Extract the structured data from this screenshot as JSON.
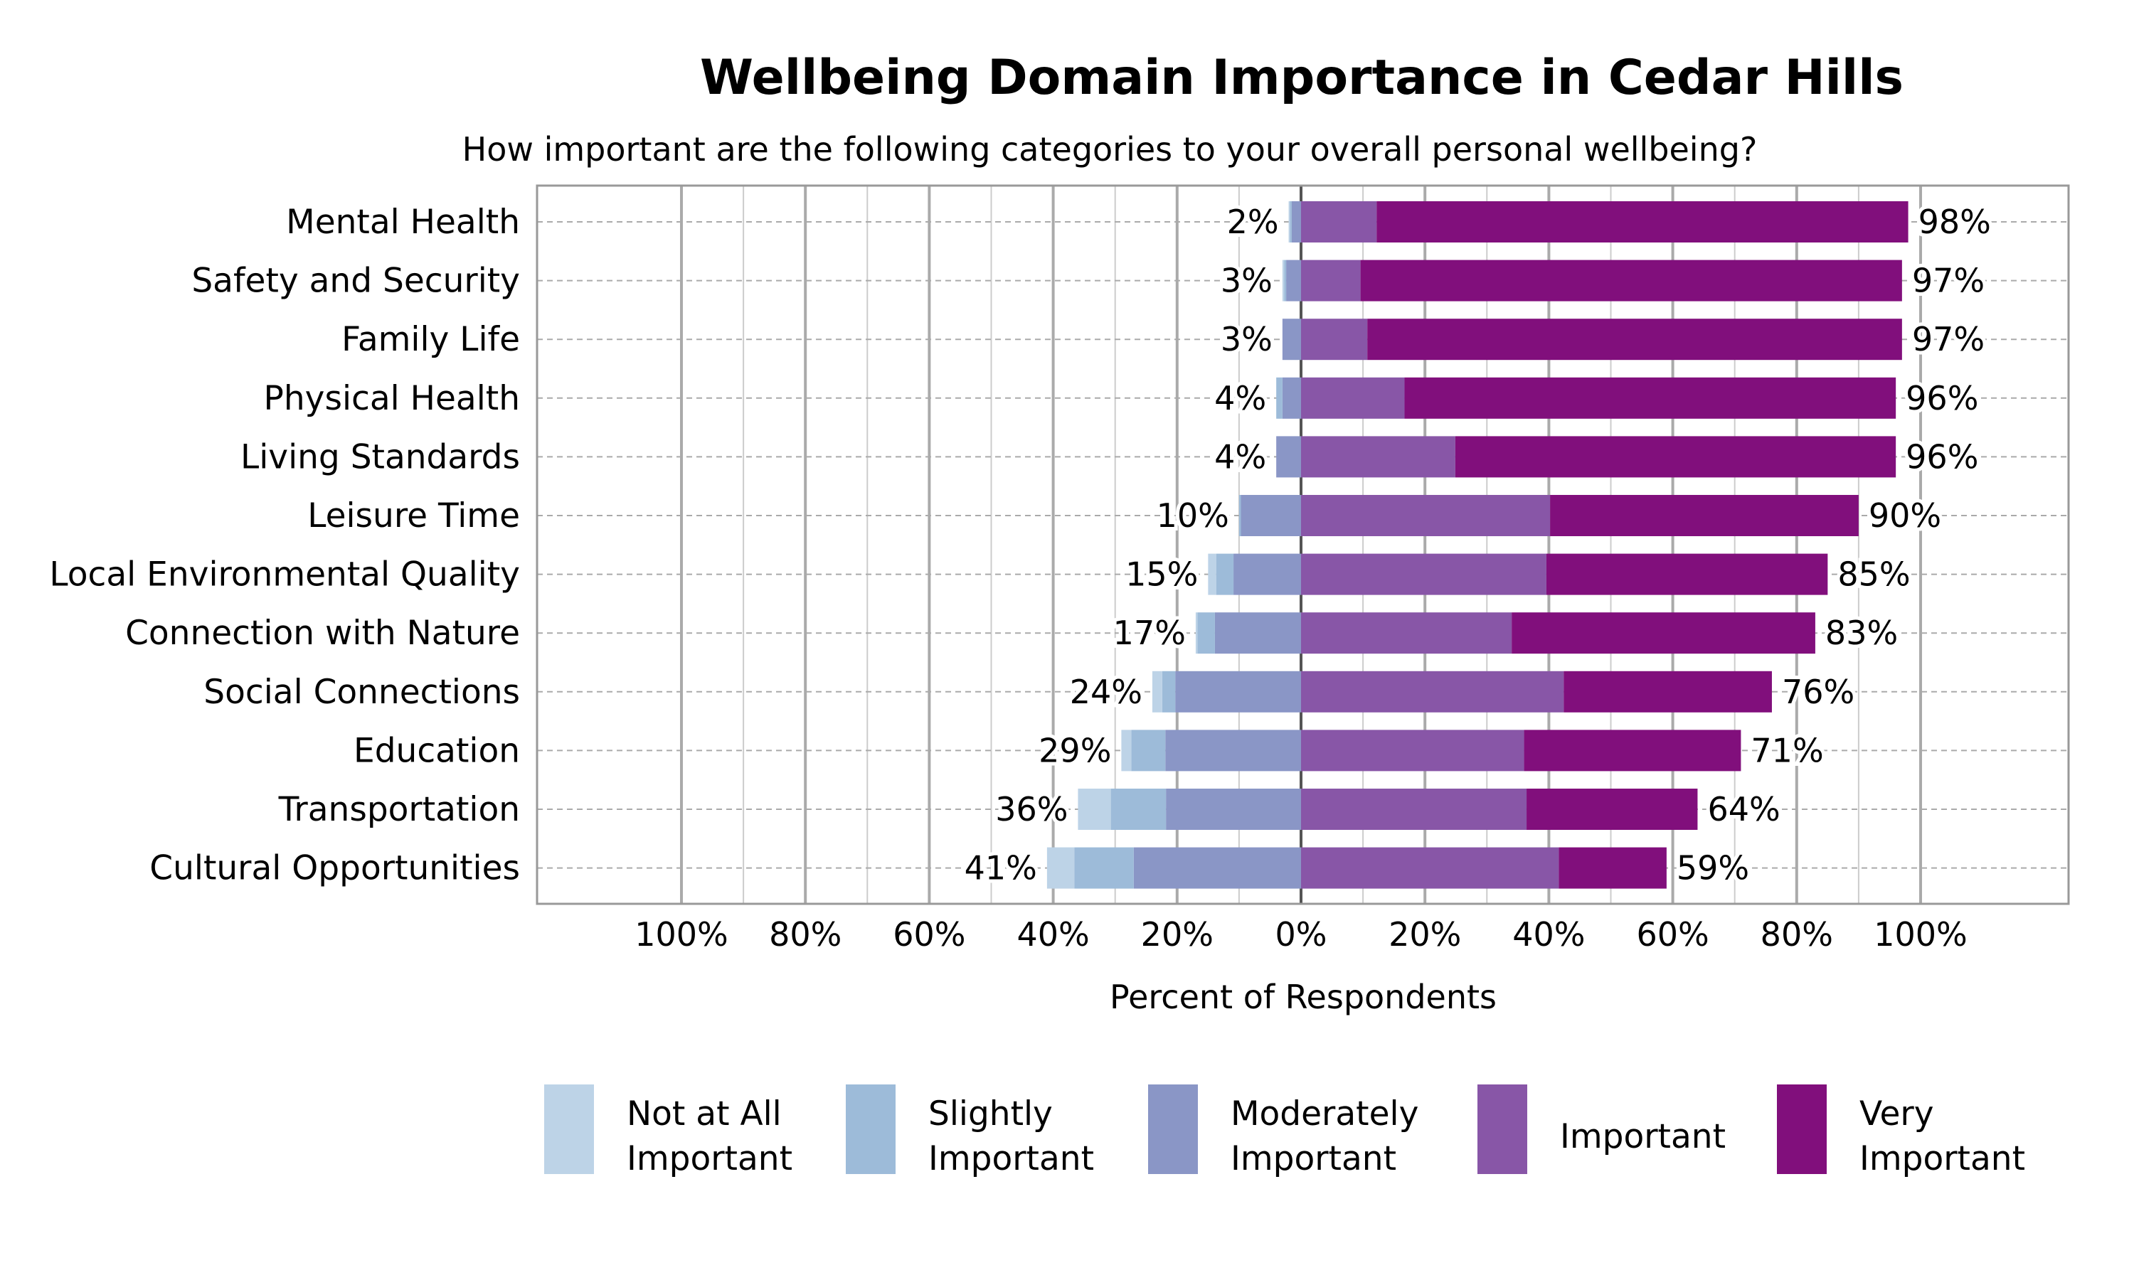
{
  "chart_data": {
    "type": "bar",
    "subtype": "diverging-stacked-horizontal",
    "title": "Wellbeing Domain Importance in Cedar Hills",
    "subtitle": "How important are the following categories to your overall personal wellbeing?",
    "xlabel": "Percent of Respondents",
    "ylabel": "",
    "xlim": [
      -100,
      100
    ],
    "x_ticks": [
      "100%",
      "80%",
      "60%",
      "40%",
      "20%",
      "0%",
      "20%",
      "40%",
      "60%",
      "80%",
      "100%"
    ],
    "grid": true,
    "legend_position": "bottom",
    "categories": [
      "Mental Health",
      "Safety and Security",
      "Family Life",
      "Physical Health",
      "Living Standards",
      "Leisure Time",
      "Local Environmental Quality",
      "Connection with Nature",
      "Social Connections",
      "Education",
      "Transportation",
      "Cultural Opportunities"
    ],
    "series": [
      {
        "name": "Not at All Important",
        "side": "negative",
        "color": "#bdd3e7",
        "values": [
          0.2,
          0.3,
          0,
          0,
          0,
          0,
          1.3,
          0.3,
          1.6,
          1.6,
          5.3,
          4.4
        ]
      },
      {
        "name": "Slightly Important",
        "side": "negative",
        "color": "#9dbbd9",
        "values": [
          0.3,
          0.3,
          0,
          1.0,
          0,
          0.3,
          2.8,
          2.8,
          2.1,
          5.5,
          8.9,
          9.6
        ]
      },
      {
        "name": "Moderately Important",
        "side": "negative",
        "color": "#8a96c6",
        "values": [
          1.5,
          2.4,
          3,
          3,
          4,
          9.7,
          10.9,
          13.9,
          20.3,
          21.9,
          21.8,
          27
        ]
      },
      {
        "name": "Important",
        "side": "positive",
        "color": "#8856a7",
        "values": [
          12.2,
          9.6,
          10.7,
          16.7,
          24.9,
          40.2,
          39.6,
          34,
          42.4,
          36,
          36.4,
          41.6
        ]
      },
      {
        "name": "Very Important",
        "side": "positive",
        "color": "#810f7c",
        "values": [
          85.8,
          87.4,
          86.3,
          79.3,
          71.1,
          49.8,
          45.4,
          49,
          33.6,
          35,
          27.6,
          17.4
        ]
      }
    ],
    "left_labels": [
      "2%",
      "3%",
      "3%",
      "4%",
      "4%",
      "10%",
      "15%",
      "17%",
      "24%",
      "29%",
      "36%",
      "41%"
    ],
    "right_labels": [
      "98%",
      "97%",
      "97%",
      "96%",
      "96%",
      "90%",
      "85%",
      "83%",
      "76%",
      "71%",
      "64%",
      "59%"
    ],
    "legend": [
      {
        "line1": "Not at All",
        "line2": "Important"
      },
      {
        "line1": "Slightly",
        "line2": "Important"
      },
      {
        "line1": "Moderately",
        "line2": "Important"
      },
      {
        "line1": "Important",
        "line2": ""
      },
      {
        "line1": "Very",
        "line2": "Important"
      }
    ]
  }
}
